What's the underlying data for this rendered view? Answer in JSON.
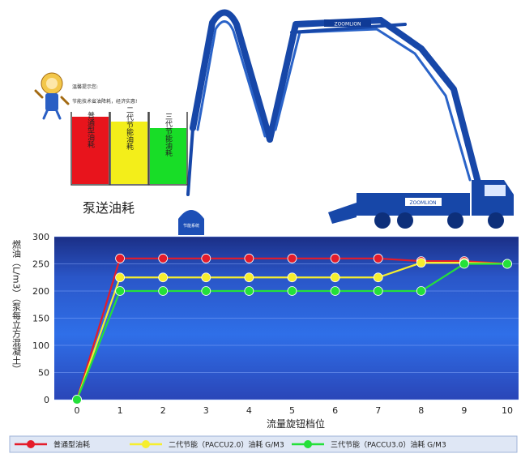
{
  "mascot": {
    "line1": "温馨提示您:",
    "line2": "节能技术省油降耗，经济实惠!"
  },
  "tanks": {
    "caption": "泵送油耗",
    "items": [
      {
        "label": "普通型油耗",
        "color": "#e8141c"
      },
      {
        "label": "二代节能油耗",
        "color": "#f3ee1a"
      },
      {
        "label": "三代节能油耗",
        "color": "#18dd27"
      }
    ]
  },
  "truck": {
    "brand": "ZOOMLION",
    "dome_text": "节能系统"
  },
  "chart_data": {
    "type": "line",
    "xlabel": "流量旋钮档位",
    "ylabel": "燃油（L/m3）（泵每立方混凝土）",
    "x": [
      0,
      1,
      2,
      3,
      4,
      5,
      6,
      7,
      8,
      9,
      10
    ],
    "xlim": [
      0,
      10
    ],
    "ylim": [
      0,
      300
    ],
    "yticks": [
      0,
      50,
      100,
      150,
      200,
      250,
      300
    ],
    "legend_position": "bottom",
    "grid": true,
    "series": [
      {
        "name": "普通型油耗",
        "color": "#e41c2a",
        "values": [
          0,
          260,
          260,
          260,
          260,
          260,
          260,
          260,
          255,
          255,
          250
        ]
      },
      {
        "name": "二代节能（PACCU2.0）油耗 G/M3",
        "color": "#f6ee2e",
        "values": [
          0,
          225,
          225,
          225,
          225,
          225,
          225,
          225,
          252,
          252,
          250
        ]
      },
      {
        "name": "三代节能（PACCU3.0）油耗 G/M3",
        "color": "#24e03a",
        "values": [
          0,
          200,
          200,
          200,
          200,
          200,
          200,
          200,
          200,
          250,
          250
        ]
      }
    ]
  }
}
